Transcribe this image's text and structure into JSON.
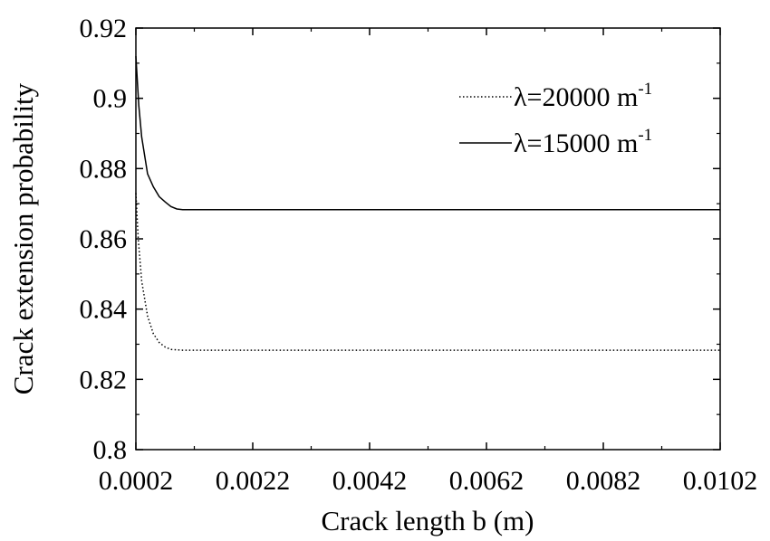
{
  "chart_data": {
    "type": "line",
    "title": "",
    "xlabel": "Crack length b (m)",
    "ylabel": "Crack extension probability",
    "xlim": [
      0.0002,
      0.0102
    ],
    "ylim": [
      0.8,
      0.92
    ],
    "xticks": [
      0.0002,
      0.0022,
      0.0042,
      0.0062,
      0.0082,
      0.0102
    ],
    "xtick_labels": [
      "0.0002",
      "0.0022",
      "0.0042",
      "0.0062",
      "0.0082",
      "0.0102"
    ],
    "yticks": [
      0.8,
      0.82,
      0.84,
      0.86,
      0.88,
      0.9,
      0.92
    ],
    "ytick_labels": [
      "0.8",
      "0.82",
      "0.84",
      "0.86",
      "0.88",
      "0.9",
      "0.92"
    ],
    "grid": false,
    "legend_position": "top-right",
    "series": [
      {
        "name_prefix": "λ=20000 m",
        "name_sup": "-1",
        "style": "dotted",
        "x": [
          0.0002,
          0.00024,
          0.0003,
          0.0004,
          0.0005,
          0.0006,
          0.0007,
          0.0008,
          0.001,
          0.0102
        ],
        "y": [
          0.873,
          0.86,
          0.848,
          0.838,
          0.833,
          0.8305,
          0.8292,
          0.8285,
          0.8283,
          0.8283
        ]
      },
      {
        "name_prefix": "λ=15000 m",
        "name_sup": "-1",
        "style": "solid",
        "x": [
          0.0002,
          0.00025,
          0.0003,
          0.0004,
          0.0005,
          0.0006,
          0.0007,
          0.0008,
          0.0009,
          0.001,
          0.0012,
          0.0102
        ],
        "y": [
          0.912,
          0.898,
          0.889,
          0.8785,
          0.8748,
          0.872,
          0.8705,
          0.8692,
          0.8685,
          0.8683,
          0.8683,
          0.8683
        ]
      }
    ]
  }
}
